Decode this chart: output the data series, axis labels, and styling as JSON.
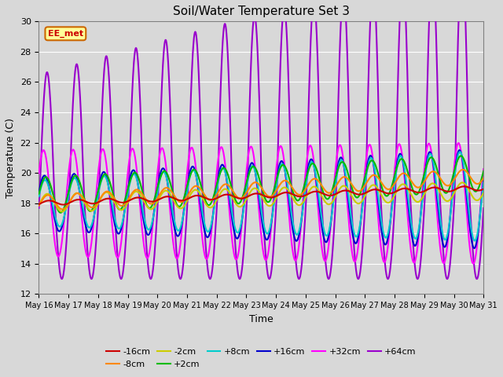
{
  "title": "Soil/Water Temperature Set 3",
  "xlabel": "Time",
  "ylabel": "Temperature (C)",
  "ylim": [
    12,
    30
  ],
  "xlim": [
    0,
    15
  ],
  "xtick_labels": [
    "May 16",
    "May 17",
    "May 18",
    "May 19",
    "May 20",
    "May 21",
    "May 22",
    "May 23",
    "May 24",
    "May 25",
    "May 26",
    "May 27",
    "May 28",
    "May 29",
    "May 30",
    "May 31"
  ],
  "ytick_values": [
    12,
    14,
    16,
    18,
    20,
    22,
    24,
    26,
    28,
    30
  ],
  "background_color": "#d8d8d8",
  "plot_bg_color": "#d8d8d8",
  "grid_color": "#ffffff",
  "series": {
    "-16cm": {
      "color": "#cc0000",
      "linewidth": 1.5
    },
    "-8cm": {
      "color": "#ff8800",
      "linewidth": 1.5
    },
    "-2cm": {
      "color": "#cccc00",
      "linewidth": 1.5
    },
    "+2cm": {
      "color": "#00bb00",
      "linewidth": 1.5
    },
    "+8cm": {
      "color": "#00cccc",
      "linewidth": 1.5
    },
    "+16cm": {
      "color": "#0000cc",
      "linewidth": 1.5
    },
    "+32cm": {
      "color": "#ff00ff",
      "linewidth": 1.5
    },
    "+64cm": {
      "color": "#9900cc",
      "linewidth": 1.5
    }
  },
  "annotation_text": "EE_met",
  "annotation_color": "#cc0000",
  "annotation_bg": "#ffff99",
  "annotation_border": "#cc6600",
  "n_days": 15,
  "pts_per_day": 144
}
